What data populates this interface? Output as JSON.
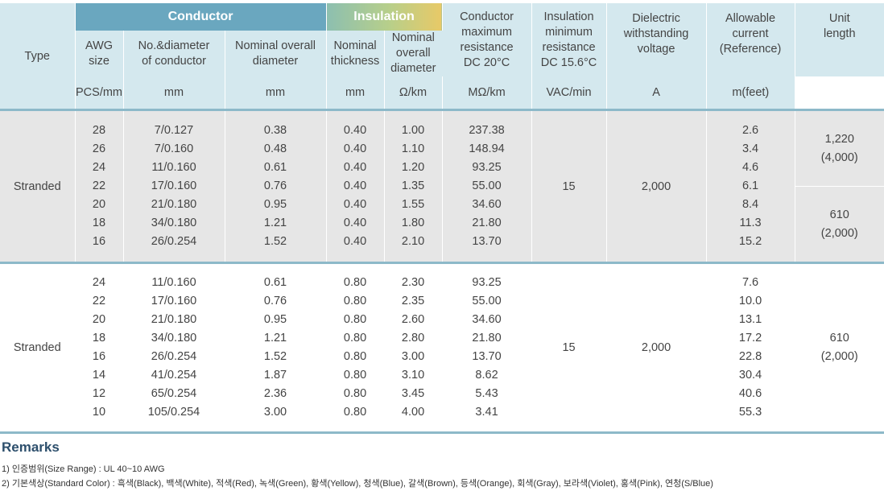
{
  "header": {
    "type": "Type",
    "conductor": "Conductor",
    "insulation": "Insulation",
    "awg": [
      "AWG",
      "size"
    ],
    "no_diameter": [
      "No.&diameter",
      "of conductor"
    ],
    "nominal_overall_diameter": [
      "Nominal overall",
      "diameter"
    ],
    "nominal_thickness": [
      "Nominal",
      "thickness"
    ],
    "ins_nominal_overall_diameter": [
      "Nominal",
      "overall",
      "diameter"
    ],
    "conductor_max_resistance": [
      "Conductor",
      "maximum",
      "resistance",
      "DC 20°C"
    ],
    "insulation_min_resistance": [
      "Insulation",
      "minimum",
      "resistance",
      "DC 15.6°C"
    ],
    "dielectric": [
      "Dielectric",
      "withstanding",
      "voltage"
    ],
    "allowable_current": [
      "Allowable",
      "current",
      "(Reference)"
    ],
    "unit_length": [
      "Unit",
      "length"
    ],
    "units": {
      "pcs": "PCS/mm",
      "mm1": "mm",
      "mm2": "mm",
      "mm3": "mm",
      "ohm": "Ω/km",
      "mohm": "MΩ/km",
      "vac": "VAC/min",
      "a": "A",
      "m": "m(feet)"
    }
  },
  "groups": [
    {
      "type": "Stranded",
      "awg": [
        "28",
        "26",
        "24",
        "22",
        "20",
        "18",
        "16"
      ],
      "no_diameter": [
        "7/0.127",
        "7/0.160",
        "11/0.160",
        "17/0.160",
        "21/0.180",
        "34/0.180",
        "26/0.254"
      ],
      "overall_diameter": [
        "0.38",
        "0.48",
        "0.61",
        "0.76",
        "0.95",
        "1.21",
        "1.52"
      ],
      "thickness": [
        "0.40",
        "0.40",
        "0.40",
        "0.40",
        "0.40",
        "0.40",
        "0.40"
      ],
      "ins_overall_diameter": [
        "1.00",
        "1.10",
        "1.20",
        "1.35",
        "1.55",
        "1.80",
        "2.10"
      ],
      "resistance": [
        "237.38",
        "148.94",
        "93.25",
        "55.00",
        "34.60",
        "21.80",
        "13.70"
      ],
      "ins_resistance": "15",
      "voltage": "2,000",
      "current": [
        "2.6",
        "3.4",
        "4.6",
        "6.1",
        "8.4",
        "11.3",
        "15.2"
      ],
      "unit_length_top": [
        "1,220",
        "(4,000)"
      ],
      "unit_length_bottom": [
        "610",
        "(2,000)"
      ]
    },
    {
      "type": "Stranded",
      "awg": [
        "24",
        "22",
        "20",
        "18",
        "16",
        "14",
        "12",
        "10"
      ],
      "no_diameter": [
        "11/0.160",
        "17/0.160",
        "21/0.180",
        "34/0.180",
        "26/0.254",
        "41/0.254",
        "65/0.254",
        "105/0.254"
      ],
      "overall_diameter": [
        "0.61",
        "0.76",
        "0.95",
        "1.21",
        "1.52",
        "1.87",
        "2.36",
        "3.00"
      ],
      "thickness": [
        "0.80",
        "0.80",
        "0.80",
        "0.80",
        "0.80",
        "0.80",
        "0.80",
        "0.80"
      ],
      "ins_overall_diameter": [
        "2.30",
        "2.35",
        "2.60",
        "2.80",
        "3.00",
        "3.10",
        "3.45",
        "4.00"
      ],
      "resistance": [
        "93.25",
        "55.00",
        "34.60",
        "21.80",
        "13.70",
        "8.62",
        "5.43",
        "3.41"
      ],
      "ins_resistance": "15",
      "voltage": "2,000",
      "current": [
        "7.6",
        "10.0",
        "13.1",
        "17.2",
        "22.8",
        "30.4",
        "40.6",
        "55.3"
      ],
      "unit_length": [
        "610",
        "(2,000)"
      ]
    }
  ],
  "remarks": {
    "title": "Remarks",
    "line1": "1) 인증범위(Size Range) : UL 40~10 AWG",
    "line2": "2) 기본색상(Standard Color) : 흑색(Black), 백색(White), 적색(Red), 녹색(Green), 황색(Yellow), 청색(Blue), 갈색(Brown), 등색(Orange), 회색(Gray), 보라색(Violet), 홍색(Pink), 연청(S/Blue)"
  }
}
